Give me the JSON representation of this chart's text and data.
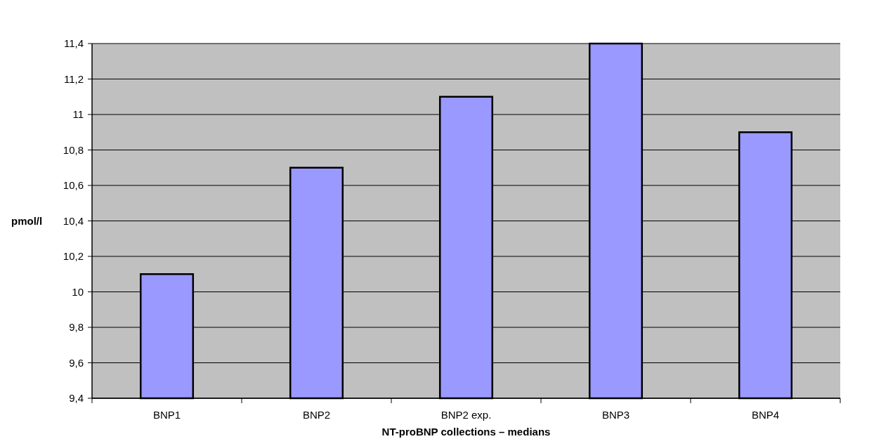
{
  "chart_data": {
    "type": "bar",
    "xlabel": "NT-proBNP collections – medians",
    "ylabel": "pmol/l",
    "categories": [
      "BNP1",
      "BNP2",
      "BNP2 exp.",
      "BNP3",
      "BNP4"
    ],
    "values": [
      10.1,
      10.7,
      11.1,
      11.4,
      10.9
    ],
    "color": "#9999ff",
    "ylim": [
      9.4,
      11.4
    ],
    "yticks": [
      {
        "value": 9.4,
        "label": "9,4"
      },
      {
        "value": 9.6,
        "label": "9,6"
      },
      {
        "value": 9.8,
        "label": "9,8"
      },
      10,
      {
        "value": 10.2,
        "label": "10,2"
      },
      {
        "value": 10.4,
        "label": "10,4"
      },
      {
        "value": 10.6,
        "label": "10,6"
      },
      {
        "value": 10.8,
        "label": "10,8"
      },
      11,
      {
        "value": 11.2,
        "label": "11,2"
      },
      {
        "value": 11.4,
        "label": "11,4"
      }
    ],
    "grid": "y"
  }
}
